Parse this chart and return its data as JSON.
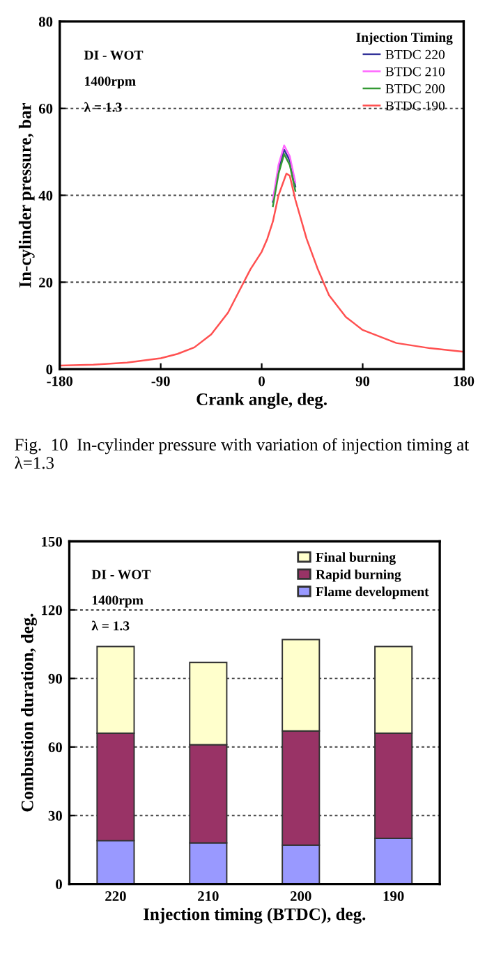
{
  "chart_data": [
    {
      "type": "line",
      "xlabel": "Crank angle, deg.",
      "ylabel": "In-cylinder pressure, bar",
      "legend_title": "Injection Timing",
      "annotations": [
        "DI - WOT",
        "1400rpm",
        "λ = 1.3",
        "Fig.  10  In-cylinder pressure with variation of injection timing at λ=1.3"
      ],
      "xlim": [
        -180,
        180
      ],
      "xticks": [
        -180,
        -90,
        0,
        90,
        180
      ],
      "ylim": [
        0,
        80
      ],
      "yticks": [
        0,
        20,
        40,
        60,
        80
      ],
      "grid": "y",
      "legend": "top right",
      "marker": "none",
      "line_style": "solid",
      "series": [
        {
          "name": "BTDC 220",
          "color": "#333399",
          "x": [
            10,
            15,
            20,
            25,
            30
          ],
          "values": [
            38.5,
            46,
            50.5,
            48,
            42
          ]
        },
        {
          "name": "BTDC 210",
          "color": "#ff66ff",
          "x": [
            10,
            15,
            20,
            25,
            30
          ],
          "values": [
            39,
            47,
            51.5,
            49,
            43
          ]
        },
        {
          "name": "BTDC 200",
          "color": "#339933",
          "x": [
            10,
            15,
            20,
            25,
            30
          ],
          "values": [
            37.5,
            45,
            49.5,
            47,
            41
          ]
        },
        {
          "name": "BTDC 190",
          "color": "#ff5050",
          "x": [
            -180,
            -150,
            -120,
            -90,
            -75,
            -60,
            -45,
            -30,
            -20,
            -10,
            0,
            5,
            10,
            15,
            22,
            25,
            30,
            40,
            50,
            60,
            75,
            90,
            120,
            150,
            180
          ],
          "values": [
            0.8,
            1.0,
            1.5,
            2.5,
            3.5,
            5,
            8,
            13,
            18,
            23,
            27,
            30,
            34,
            40,
            45,
            44.5,
            39,
            30,
            23,
            17,
            12,
            9,
            6,
            4.8,
            4
          ]
        }
      ]
    },
    {
      "type": "bar",
      "stacked": true,
      "xlabel": "Injection timing (BTDC), deg.",
      "ylabel": "Combustion duration, deg.",
      "annotations": [
        "DI - WOT",
        "1400rpm",
        "λ = 1.3"
      ],
      "categories": [
        "220",
        "210",
        "200",
        "190"
      ],
      "ylim": [
        0,
        150
      ],
      "yticks": [
        0,
        30,
        60,
        90,
        120,
        150
      ],
      "grid": "y",
      "legend": "top right",
      "series": [
        {
          "name": "Flame development",
          "color": "#9999ff",
          "values": [
            19,
            18,
            17,
            20
          ]
        },
        {
          "name": "Rapid burning",
          "color": "#993366",
          "values": [
            47,
            43,
            50,
            46
          ]
        },
        {
          "name": "Final burning",
          "color": "#ffffcc",
          "values": [
            38,
            36,
            40,
            38
          ]
        }
      ]
    }
  ]
}
